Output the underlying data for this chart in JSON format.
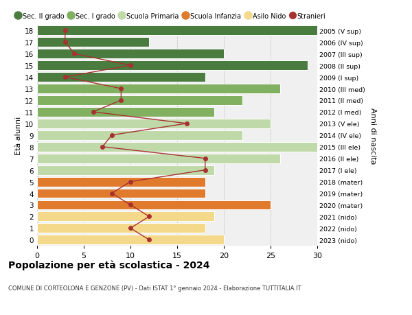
{
  "ages": [
    18,
    17,
    16,
    15,
    14,
    13,
    12,
    11,
    10,
    9,
    8,
    7,
    6,
    5,
    4,
    3,
    2,
    1,
    0
  ],
  "years": [
    "2005 (V sup)",
    "2006 (IV sup)",
    "2007 (III sup)",
    "2008 (II sup)",
    "2009 (I sup)",
    "2010 (III med)",
    "2011 (II med)",
    "2012 (I med)",
    "2013 (V ele)",
    "2014 (IV ele)",
    "2015 (III ele)",
    "2016 (II ele)",
    "2017 (I ele)",
    "2018 (mater)",
    "2019 (mater)",
    "2020 (mater)",
    "2021 (nido)",
    "2022 (nido)",
    "2023 (nido)"
  ],
  "bar_values": [
    31,
    12,
    20,
    29,
    18,
    26,
    22,
    19,
    25,
    22,
    30,
    26,
    19,
    18,
    18,
    25,
    19,
    18,
    20
  ],
  "bar_colors": [
    "#4a7c40",
    "#4a7c40",
    "#4a7c40",
    "#4a7c40",
    "#4a7c40",
    "#80b060",
    "#80b060",
    "#80b060",
    "#c0d9a8",
    "#c0d9a8",
    "#c0d9a8",
    "#c0d9a8",
    "#c0d9a8",
    "#e07b2e",
    "#e07b2e",
    "#e07b2e",
    "#f5d98a",
    "#f5d98a",
    "#f5d98a"
  ],
  "stranieri_values": [
    3,
    3,
    4,
    10,
    3,
    9,
    9,
    6,
    16,
    8,
    7,
    18,
    18,
    10,
    8,
    10,
    12,
    10,
    12
  ],
  "stranieri_color": "#a83030",
  "legend_labels": [
    "Sec. II grado",
    "Sec. I grado",
    "Scuola Primaria",
    "Scuola Infanzia",
    "Asilo Nido",
    "Stranieri"
  ],
  "legend_colors": [
    "#4a7c40",
    "#80b060",
    "#c0d9a8",
    "#e07b2e",
    "#f5d98a",
    "#a83030"
  ],
  "title": "Popolazione per età scolastica - 2024",
  "subtitle": "COMUNE DI CORTEOLONA E GENZONE (PV) - Dati ISTAT 1° gennaio 2024 - Elaborazione TUTTITALIA.IT",
  "ylabel_left": "Età alunni",
  "ylabel_right": "Anni di nascita",
  "xlim": [
    0,
    30
  ],
  "xticks": [
    0,
    5,
    10,
    15,
    20,
    25,
    30
  ],
  "plot_bg": "#f0f0f0",
  "fig_bg": "#ffffff"
}
